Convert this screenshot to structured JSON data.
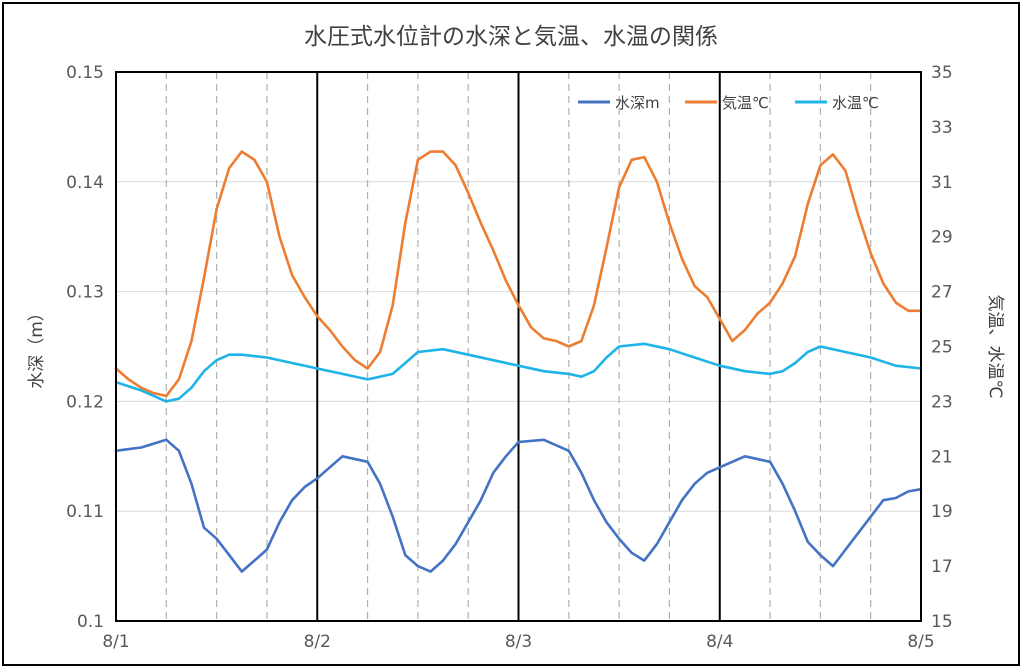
{
  "chart_data": {
    "type": "line",
    "title": "水圧式水位計の水深と気温、水温の関係",
    "x": [
      "8/1",
      "8/2",
      "8/3",
      "8/4",
      "8/5"
    ],
    "xlim": [
      "8/1",
      "8/5"
    ],
    "y_left": {
      "label": "水深（m）",
      "ylim": [
        0.1,
        0.15
      ],
      "ticks": [
        "0.1",
        "0.11",
        "0.12",
        "0.13",
        "0.14",
        "0.15"
      ]
    },
    "y_right": {
      "label": "気温、水温℃",
      "ylim": [
        15,
        35
      ],
      "ticks": [
        "15",
        "17",
        "19",
        "21",
        "23",
        "25",
        "27",
        "29",
        "31",
        "33",
        "35"
      ]
    },
    "grid": true,
    "legend_position": "top-right",
    "series": [
      {
        "name": "水深m",
        "axis": "left",
        "color": "#4472C4",
        "points": [
          [
            0,
            0.1155
          ],
          [
            0.125,
            0.1158
          ],
          [
            0.25,
            0.1165
          ],
          [
            0.3125,
            0.1155
          ],
          [
            0.375,
            0.1125
          ],
          [
            0.4375,
            0.1085
          ],
          [
            0.5,
            0.1075
          ],
          [
            0.5625,
            0.106
          ],
          [
            0.625,
            0.1045
          ],
          [
            0.6875,
            0.1055
          ],
          [
            0.75,
            0.1065
          ],
          [
            0.8125,
            0.109
          ],
          [
            0.875,
            0.111
          ],
          [
            0.9375,
            0.1122
          ],
          [
            1.0,
            0.113
          ],
          [
            1.125,
            0.115
          ],
          [
            1.25,
            0.1145
          ],
          [
            1.3125,
            0.1125
          ],
          [
            1.375,
            0.1095
          ],
          [
            1.4375,
            0.106
          ],
          [
            1.5,
            0.105
          ],
          [
            1.5625,
            0.1045
          ],
          [
            1.625,
            0.1055
          ],
          [
            1.6875,
            0.107
          ],
          [
            1.75,
            0.109
          ],
          [
            1.8125,
            0.111
          ],
          [
            1.875,
            0.1135
          ],
          [
            1.9375,
            0.115
          ],
          [
            2.0,
            0.1163
          ],
          [
            2.125,
            0.1165
          ],
          [
            2.25,
            0.1155
          ],
          [
            2.3125,
            0.1135
          ],
          [
            2.375,
            0.111
          ],
          [
            2.4375,
            0.109
          ],
          [
            2.5,
            0.1075
          ],
          [
            2.5625,
            0.1062
          ],
          [
            2.625,
            0.1055
          ],
          [
            2.6875,
            0.107
          ],
          [
            2.75,
            0.109
          ],
          [
            2.8125,
            0.111
          ],
          [
            2.875,
            0.1125
          ],
          [
            2.9375,
            0.1135
          ],
          [
            3.0,
            0.114
          ],
          [
            3.125,
            0.115
          ],
          [
            3.25,
            0.1145
          ],
          [
            3.3125,
            0.1125
          ],
          [
            3.375,
            0.11
          ],
          [
            3.4375,
            0.1072
          ],
          [
            3.5,
            0.106
          ],
          [
            3.5625,
            0.105
          ],
          [
            3.625,
            0.1065
          ],
          [
            3.6875,
            0.108
          ],
          [
            3.75,
            0.1095
          ],
          [
            3.8125,
            0.111
          ],
          [
            3.875,
            0.1112
          ],
          [
            3.9375,
            0.1118
          ],
          [
            4.0,
            0.112
          ]
        ]
      },
      {
        "name": "気温℃",
        "axis": "right",
        "color": "#ED7D31",
        "points": [
          [
            0,
            24.2
          ],
          [
            0.0625,
            23.8
          ],
          [
            0.125,
            23.5
          ],
          [
            0.1875,
            23.3
          ],
          [
            0.25,
            23.2
          ],
          [
            0.3125,
            23.8
          ],
          [
            0.375,
            25.2
          ],
          [
            0.4375,
            27.5
          ],
          [
            0.5,
            30.0
          ],
          [
            0.5625,
            31.5
          ],
          [
            0.625,
            32.1
          ],
          [
            0.6875,
            31.8
          ],
          [
            0.75,
            31.0
          ],
          [
            0.8125,
            29.0
          ],
          [
            0.875,
            27.6
          ],
          [
            0.9375,
            26.8
          ],
          [
            1.0,
            26.1
          ],
          [
            1.0625,
            25.6
          ],
          [
            1.125,
            25.0
          ],
          [
            1.1875,
            24.5
          ],
          [
            1.25,
            24.2
          ],
          [
            1.3125,
            24.8
          ],
          [
            1.375,
            26.5
          ],
          [
            1.4375,
            29.5
          ],
          [
            1.5,
            31.8
          ],
          [
            1.5625,
            32.1
          ],
          [
            1.625,
            32.1
          ],
          [
            1.6875,
            31.6
          ],
          [
            1.75,
            30.6
          ],
          [
            1.8125,
            29.5
          ],
          [
            1.875,
            28.5
          ],
          [
            1.9375,
            27.4
          ],
          [
            2.0,
            26.5
          ],
          [
            2.0625,
            25.7
          ],
          [
            2.125,
            25.3
          ],
          [
            2.1875,
            25.2
          ],
          [
            2.25,
            25.0
          ],
          [
            2.3125,
            25.2
          ],
          [
            2.375,
            26.5
          ],
          [
            2.4375,
            28.6
          ],
          [
            2.5,
            30.8
          ],
          [
            2.5625,
            31.8
          ],
          [
            2.625,
            31.9
          ],
          [
            2.6875,
            31.0
          ],
          [
            2.75,
            29.5
          ],
          [
            2.8125,
            28.2
          ],
          [
            2.875,
            27.2
          ],
          [
            2.9375,
            26.8
          ],
          [
            3.0,
            26.0
          ],
          [
            3.0625,
            25.2
          ],
          [
            3.125,
            25.6
          ],
          [
            3.1875,
            26.2
          ],
          [
            3.25,
            26.6
          ],
          [
            3.3125,
            27.3
          ],
          [
            3.375,
            28.3
          ],
          [
            3.4375,
            30.2
          ],
          [
            3.5,
            31.6
          ],
          [
            3.5625,
            32.0
          ],
          [
            3.625,
            31.4
          ],
          [
            3.6875,
            29.8
          ],
          [
            3.75,
            28.4
          ],
          [
            3.8125,
            27.3
          ],
          [
            3.875,
            26.6
          ],
          [
            3.9375,
            26.3
          ],
          [
            4.0,
            26.3
          ]
        ]
      },
      {
        "name": "水温℃",
        "axis": "right",
        "color": "#1FB4E8",
        "points": [
          [
            0,
            23.7
          ],
          [
            0.125,
            23.4
          ],
          [
            0.25,
            23.0
          ],
          [
            0.3125,
            23.1
          ],
          [
            0.375,
            23.5
          ],
          [
            0.4375,
            24.1
          ],
          [
            0.5,
            24.5
          ],
          [
            0.5625,
            24.7
          ],
          [
            0.625,
            24.7
          ],
          [
            0.75,
            24.6
          ],
          [
            0.875,
            24.4
          ],
          [
            1.0,
            24.2
          ],
          [
            1.125,
            24.0
          ],
          [
            1.25,
            23.8
          ],
          [
            1.375,
            24.0
          ],
          [
            1.4375,
            24.4
          ],
          [
            1.5,
            24.8
          ],
          [
            1.625,
            24.9
          ],
          [
            1.75,
            24.7
          ],
          [
            1.875,
            24.5
          ],
          [
            2.0,
            24.3
          ],
          [
            2.125,
            24.1
          ],
          [
            2.25,
            24.0
          ],
          [
            2.3125,
            23.9
          ],
          [
            2.375,
            24.1
          ],
          [
            2.4375,
            24.6
          ],
          [
            2.5,
            25.0
          ],
          [
            2.625,
            25.1
          ],
          [
            2.75,
            24.9
          ],
          [
            2.875,
            24.6
          ],
          [
            3.0,
            24.3
          ],
          [
            3.125,
            24.1
          ],
          [
            3.25,
            24.0
          ],
          [
            3.3125,
            24.1
          ],
          [
            3.375,
            24.4
          ],
          [
            3.4375,
            24.8
          ],
          [
            3.5,
            25.0
          ],
          [
            3.625,
            24.8
          ],
          [
            3.75,
            24.6
          ],
          [
            3.875,
            24.3
          ],
          [
            4.0,
            24.2
          ]
        ]
      }
    ]
  }
}
